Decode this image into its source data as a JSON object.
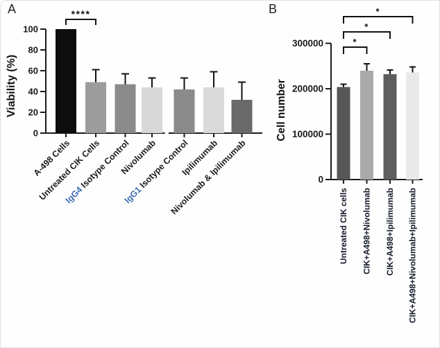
{
  "figure": {
    "background": "#fefefe",
    "panel_letters": [
      "A",
      "B"
    ]
  },
  "chart_data": [
    {
      "type": "bar",
      "panel": "A",
      "title": "",
      "xlabel": "",
      "ylabel": "Viability (%)",
      "ylim": [
        0,
        100
      ],
      "yticks": [
        0,
        20,
        40,
        60,
        80,
        100
      ],
      "ytick_labels": [
        "0",
        "20",
        "40",
        "60",
        "80",
        "100"
      ],
      "categories": [
        {
          "text": "A-498 Cells"
        },
        {
          "text": "Untreated CIK Cells"
        },
        {
          "text": "IgG4 Isotype Control",
          "prefix": "IgG4",
          "prefix_color": "#3e6cb1"
        },
        {
          "text": "Nivolumab"
        },
        {
          "text": "IgG1 Isotype Control",
          "prefix": "IgG1",
          "prefix_color": "#3e6cb1"
        },
        {
          "text": "Ipilimumab"
        },
        {
          "text": "Nivolumab & Ipilimumab"
        }
      ],
      "values": [
        100,
        49,
        47,
        44,
        42,
        44,
        32
      ],
      "errors_up": [
        0,
        12,
        10,
        9,
        11,
        15,
        17
      ],
      "bar_colors": [
        "#0d0d0d",
        "#9c9c9c",
        "#8b8b8b",
        "#d8d8d8",
        "#8b8b8b",
        "#dadada",
        "#6a6a6a"
      ],
      "significance": [
        {
          "from": 0,
          "to": 1,
          "label": "****"
        }
      ],
      "x_axis_break_after_index": 3,
      "grid": false,
      "legend": "none",
      "error_bars": "upper only, black",
      "axis_color": "#1a1a1a"
    },
    {
      "type": "bar",
      "panel": "B",
      "title": "",
      "xlabel": "",
      "ylabel": "Cell number",
      "ylim": [
        0,
        300000
      ],
      "yticks": [
        0,
        100000,
        200000,
        300000
      ],
      "ytick_labels": [
        "0",
        "100000",
        "200000",
        "300000"
      ],
      "categories": [
        {
          "text": "Untreated CIK cells"
        },
        {
          "text": "CIK+A498+Nivolumab"
        },
        {
          "text": "CIK+A498+Ipilimumab"
        },
        {
          "text": "CIK+A498+Nivolumab+Ipilimumab"
        }
      ],
      "values": [
        204000,
        240000,
        232000,
        236000
      ],
      "errors_up": [
        6000,
        15000,
        9000,
        12000
      ],
      "bar_colors": [
        "#575757",
        "#a9a9a9",
        "#5e5e5e",
        "#e9e9e9"
      ],
      "significance": [
        {
          "from": 0,
          "to": 1,
          "label": "*"
        },
        {
          "from": 0,
          "to": 2,
          "label": "*"
        },
        {
          "from": 0,
          "to": 3,
          "label": "*"
        }
      ],
      "grid": false,
      "legend": "none",
      "error_bars": "upper only, black",
      "axis_color": "#1a1a1a"
    }
  ]
}
